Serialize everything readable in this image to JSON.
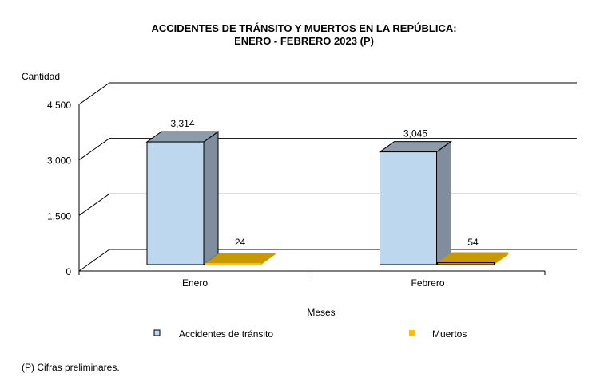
{
  "chart_data": {
    "type": "bar",
    "title_lines": [
      "ACCIDENTES  DE  TRÁNSITO Y MUERTOS  EN  LA REPÚBLICA:",
      "ENERO  - FEBRERO  2023 (P)"
    ],
    "categories": [
      "Enero",
      "Febrero"
    ],
    "series": [
      {
        "name": "Accidentes de tránsito",
        "values": [
          3314,
          3045
        ],
        "labels": [
          "3,314",
          "3,045"
        ],
        "color": "#bdd7ee",
        "side_color": "#7f8d9c",
        "top_color": "#8d9cab"
      },
      {
        "name": "Muertos",
        "values": [
          24,
          54
        ],
        "labels": [
          "24",
          "54"
        ],
        "color": "#c99a00",
        "top_color": "#c99a00",
        "edge_color": "#ffc000"
      }
    ],
    "xlabel": "Meses",
    "ylabel": "Cantidad",
    "ylim": [
      0,
      4500
    ],
    "yticks": [
      0,
      1500,
      3000,
      4500
    ],
    "ytick_labels": [
      "0",
      "1,500",
      "3,000",
      "4,500"
    ],
    "grid": true,
    "legend_position": "bottom",
    "three_d": true
  },
  "footnote": "(P) Cifras  preliminares."
}
